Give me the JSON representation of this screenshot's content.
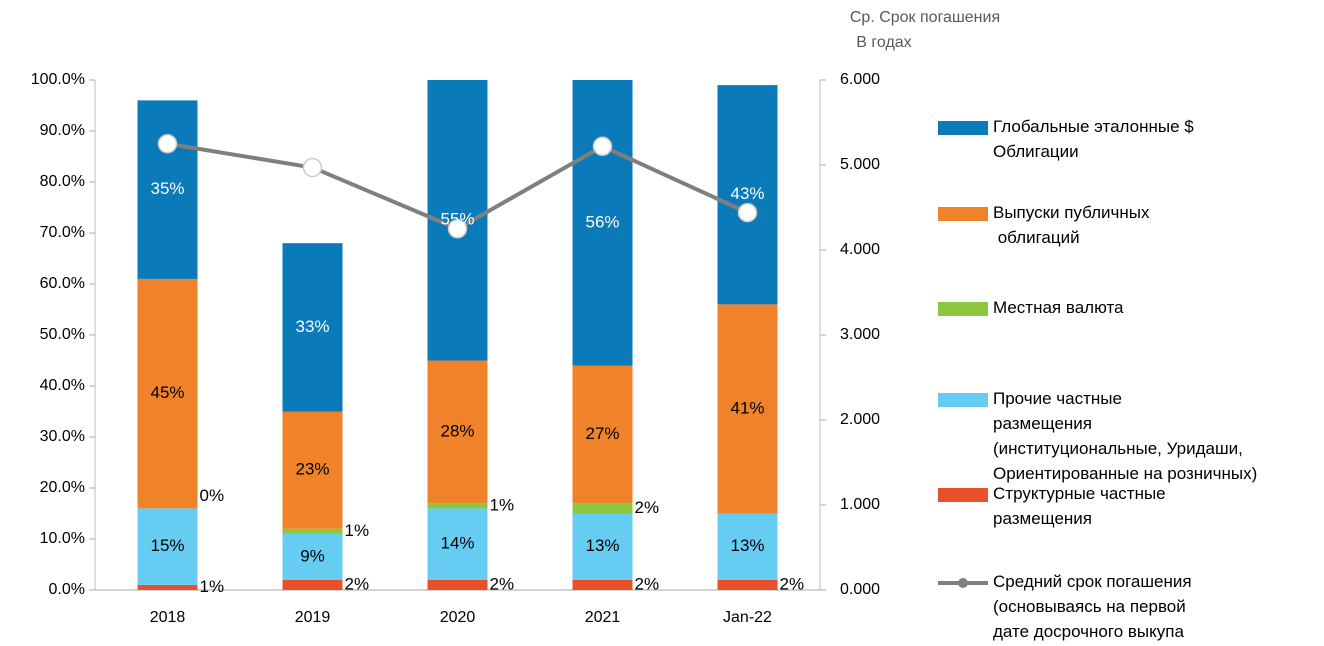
{
  "chart_data": {
    "type": "bar",
    "stacked": true,
    "categories": [
      "2018",
      "2019",
      "2020",
      "2021",
      "Jan-22"
    ],
    "series": [
      {
        "name": "Структурные частные\nразмещения",
        "color": "#e8502a",
        "values": [
          1,
          2,
          2,
          2,
          2
        ],
        "value_labels": [
          "1%",
          "2%",
          "2%",
          "2%",
          "2%"
        ]
      },
      {
        "name": "Прочие частные\nразмещения\n(институциональные, Уридаши,\nОриентированные на розничных)",
        "color": "#66ccf2",
        "values": [
          15,
          9,
          14,
          13,
          13
        ],
        "value_labels": [
          "15%",
          "9%",
          "14%",
          "13%",
          "13%"
        ]
      },
      {
        "name": "Местная валюта",
        "color": "#8dc63f",
        "values": [
          0,
          1,
          1,
          2,
          0
        ],
        "value_labels": [
          "0%",
          "1%",
          "1%",
          "2%",
          null
        ]
      },
      {
        "name": "Выпуски публичных\n облигаций",
        "color": "#f0832a",
        "values": [
          45,
          23,
          28,
          27,
          41
        ],
        "value_labels": [
          "45%",
          "23%",
          "28%",
          "27%",
          "41%"
        ]
      },
      {
        "name": "Глобальные эталонные $\nОблигации",
        "color": "#0a7ab8",
        "values": [
          35,
          33,
          55,
          56,
          43
        ],
        "value_labels": [
          "35%",
          "33%",
          "55%",
          "56%",
          "43%"
        ]
      },
      {
        "name": "Средний срок погашения\n(основываясь на первой\nдате досрочного выкупа",
        "type": "line",
        "axis": "y2",
        "color": "#7f7f7f",
        "values": [
          5.25,
          4.97,
          4.25,
          5.22,
          4.44
        ]
      }
    ],
    "ylim": [
      0,
      100
    ],
    "yticks": [
      {
        "value": 0,
        "label": "0.0%"
      },
      {
        "value": 10,
        "label": "10.0%"
      },
      {
        "value": 20,
        "label": "20.0%"
      },
      {
        "value": 30,
        "label": "30.0%"
      },
      {
        "value": 40,
        "label": "40.0%"
      },
      {
        "value": 50,
        "label": "50.0%"
      },
      {
        "value": 60,
        "label": "60.0%"
      },
      {
        "value": 70,
        "label": "70.0%"
      },
      {
        "value": 80,
        "label": "80.0%"
      },
      {
        "value": 90,
        "label": "90.0%"
      },
      {
        "value": 100,
        "label": "100.0%"
      }
    ],
    "y2lim": [
      0,
      6
    ],
    "y2ticks": [
      {
        "value": 0,
        "label": "0.000"
      },
      {
        "value": 1,
        "label": "1.000"
      },
      {
        "value": 2,
        "label": "2.000"
      },
      {
        "value": 3,
        "label": "3.000"
      },
      {
        "value": 4,
        "label": "4.000"
      },
      {
        "value": 5,
        "label": "5.000"
      },
      {
        "value": 6,
        "label": "6.000"
      }
    ],
    "y2_label": [
      "Ср. Срок погашения",
      "В годах"
    ],
    "legend": "right"
  }
}
